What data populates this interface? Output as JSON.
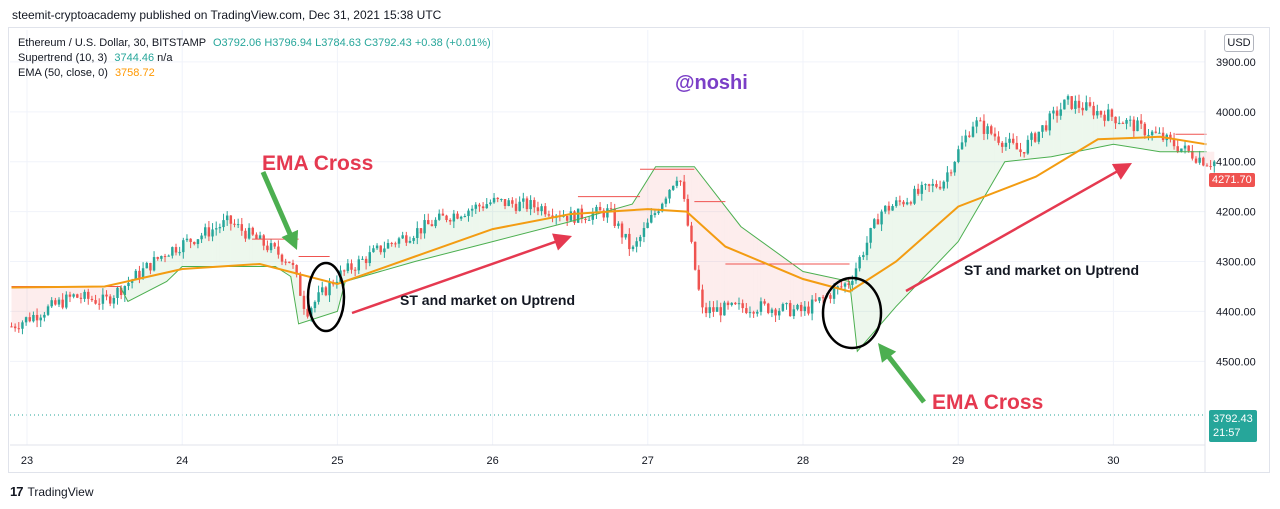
{
  "header": {
    "publish_line": "steemit-cryptoacademy published on TradingView.com, Dec 31, 2021 15:38 UTC"
  },
  "legend": {
    "symbol": "Ethereum / U.S. Dollar, 30, BITSTAMP",
    "open": "O3792.06",
    "high": "H3796.94",
    "low": "L3784.63",
    "close": "C3792.43",
    "change": "+0.38 (+0.01%)",
    "supertrend_label": "Supertrend (10, 3)",
    "supertrend_value": "3744.46",
    "supertrend_na": "n/a",
    "ema_label": "EMA (50, close, 0)",
    "ema_value": "3758.72"
  },
  "currency_button": "USD",
  "price_axis": {
    "ticks": [
      "4500.00",
      "4400.00",
      "4300.00",
      "4200.00",
      "4100.00",
      "4000.00",
      "3900.00"
    ],
    "current_price_tag": "4271.70",
    "last_price_tag": "3792.43",
    "countdown": "21:57"
  },
  "time_axis": {
    "ticks": [
      "23",
      "24",
      "25",
      "26",
      "27",
      "28",
      "29",
      "30"
    ]
  },
  "annotations": {
    "watermark": "@noshi",
    "ema_cross_1": "EMA Cross",
    "ema_cross_2": "EMA Cross",
    "uptrend_1": "ST and market on Uptrend",
    "uptrend_2": "ST and market on Uptrend"
  },
  "colors": {
    "up": "#26a69a",
    "down": "#ef5350",
    "ema": "#f39c12",
    "annotation_red": "#e53950",
    "arrow_green": "#4caf50",
    "watermark": "#7b3fc7"
  },
  "footer": {
    "brand": "TradingView"
  },
  "chart_data": {
    "type": "line",
    "title": "Ethereum / U.S. Dollar, 30, BITSTAMP",
    "x_ticks": [
      "23",
      "24",
      "25",
      "26",
      "27",
      "28",
      "29",
      "30"
    ],
    "ylim": [
      3830,
      4530
    ],
    "y_ticks": [
      3900,
      4000,
      4100,
      4200,
      4300,
      4400,
      4500
    ],
    "series": [
      {
        "name": "Price",
        "x": [
          22.9,
          23.3,
          23.5,
          23.9,
          24.3,
          24.7,
          24.8,
          25.0,
          25.3,
          25.7,
          26.0,
          26.3,
          26.5,
          26.75,
          26.9,
          27.2,
          27.35,
          27.7,
          28.0,
          28.3,
          28.5,
          28.9,
          29.1,
          29.4,
          29.7,
          30.0,
          30.3,
          30.6
        ],
        "values": [
          3970,
          4030,
          4020,
          4120,
          4180,
          4100,
          4000,
          4070,
          4130,
          4190,
          4220,
          4210,
          4190,
          4200,
          4120,
          4280,
          4000,
          4010,
          4000,
          4060,
          4200,
          4260,
          4380,
          4320,
          4420,
          4390,
          4350,
          4300
        ]
      },
      {
        "name": "EMA (50, close, 0)",
        "x": [
          22.9,
          23.5,
          24.0,
          24.5,
          25.0,
          25.5,
          26.0,
          26.5,
          27.0,
          27.25,
          27.5,
          28.0,
          28.3,
          28.6,
          29.0,
          29.5,
          29.9,
          30.3,
          30.6
        ],
        "values": [
          4048,
          4050,
          4085,
          4095,
          4055,
          4110,
          4165,
          4195,
          4205,
          4200,
          4130,
          4065,
          4040,
          4100,
          4210,
          4270,
          4345,
          4350,
          4335
        ]
      },
      {
        "name": "Supertrend (10, 3)",
        "x": [
          22.9,
          23.6,
          23.65,
          23.9,
          24.0,
          24.6,
          24.7,
          24.75,
          25.0,
          25.05,
          25.5,
          26.0,
          26.5,
          26.9,
          27.05,
          27.3,
          27.6,
          28.0,
          28.3,
          28.35,
          28.6,
          29.0,
          29.3,
          29.6,
          30.0,
          30.3,
          30.6
        ],
        "values": [
          4050,
          4050,
          4020,
          4060,
          4090,
          4090,
          4070,
          3975,
          4000,
          4060,
          4100,
          4140,
          4180,
          4215,
          4290,
          4290,
          4170,
          4080,
          4060,
          3920,
          4010,
          4140,
          4300,
          4310,
          4335,
          4320,
          4320
        ]
      }
    ]
  }
}
